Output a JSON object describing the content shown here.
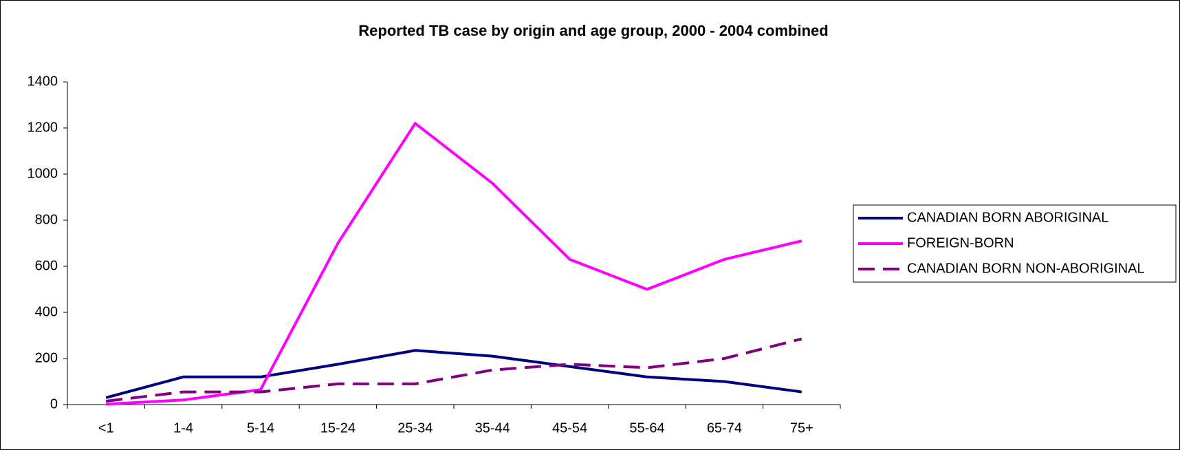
{
  "chart_data": {
    "type": "line",
    "title": "Reported TB case by origin and age group, 2000 - 2004 combined",
    "categories": [
      "<1",
      "1-4",
      "5-14",
      "15-24",
      "25-34",
      "35-44",
      "45-54",
      "55-64",
      "65-74",
      "75+"
    ],
    "series": [
      {
        "name": "CANADIAN BORN ABORIGINAL",
        "color": "#000080",
        "dash": false,
        "values": [
          30,
          120,
          120,
          175,
          235,
          210,
          165,
          120,
          100,
          55
        ]
      },
      {
        "name": "FOREIGN-BORN",
        "color": "#ff00ff",
        "dash": false,
        "values": [
          2,
          20,
          65,
          700,
          1220,
          960,
          630,
          500,
          630,
          710
        ]
      },
      {
        "name": "CANADIAN BORN NON-ABORIGINAL",
        "color": "#800080",
        "dash": true,
        "values": [
          15,
          55,
          55,
          90,
          90,
          150,
          175,
          160,
          200,
          285
        ]
      }
    ],
    "ylim": [
      0,
      1400
    ],
    "yticks": [
      0,
      200,
      400,
      600,
      800,
      1000,
      1200,
      1400
    ],
    "legend": "right"
  }
}
